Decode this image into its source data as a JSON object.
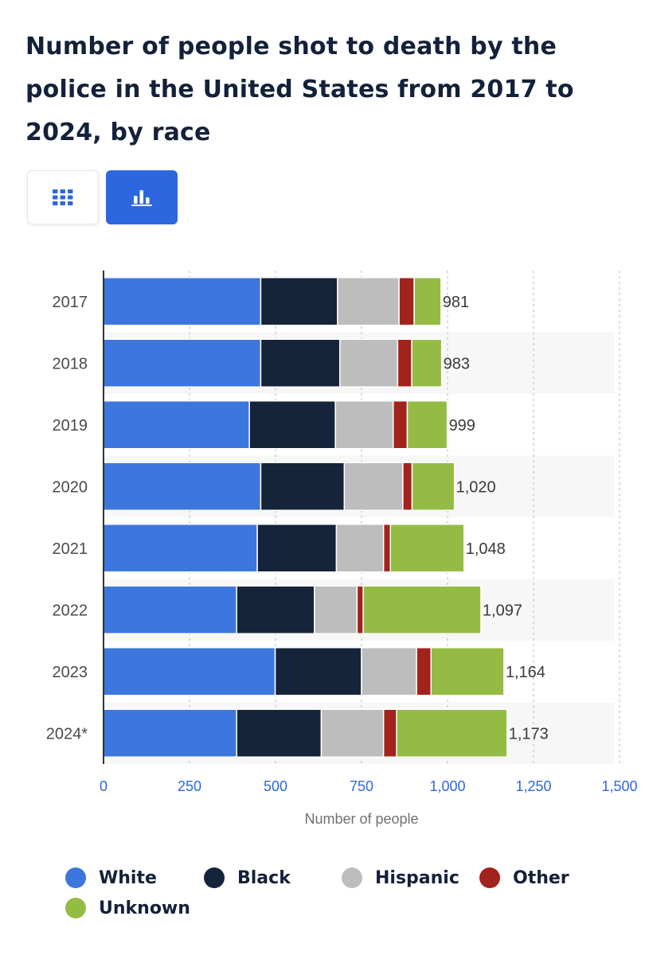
{
  "title": "Number of people shot to death by the police in the United States from 2017 to 2024, by race",
  "view_toggle": {
    "table_icon": "table-grid-icon",
    "chart_icon": "bar-chart-icon",
    "table_color": "#2d67df",
    "active_color": "#2d67df"
  },
  "chart_data": {
    "type": "bar",
    "orientation": "horizontal",
    "stacked": true,
    "title": "Number of people shot to death by the police in the United States from 2017 to 2024, by race",
    "xlabel": "Number of people",
    "ylabel": "",
    "xlim": [
      0,
      1500
    ],
    "xticks": [
      0,
      250,
      500,
      750,
      1000,
      1250,
      1500
    ],
    "xtick_labels": [
      "0",
      "250",
      "500",
      "750",
      "1,000",
      "1,250",
      "1,500"
    ],
    "grid": true,
    "legend_position": "bottom",
    "categories": [
      "2017",
      "2018",
      "2019",
      "2020",
      "2021",
      "2022",
      "2023",
      "2024*"
    ],
    "series": [
      {
        "name": "White",
        "color": "#3d77dd",
        "values": [
          457,
          457,
          424,
          457,
          447,
          387,
          499,
          387
        ]
      },
      {
        "name": "Black",
        "color": "#15243a",
        "values": [
          223,
          230,
          250,
          243,
          230,
          226,
          251,
          246
        ]
      },
      {
        "name": "Hispanic",
        "color": "#bdbdbd",
        "values": [
          179,
          168,
          168,
          170,
          137,
          124,
          160,
          181
        ]
      },
      {
        "name": "Other",
        "color": "#a2221c",
        "values": [
          44,
          41,
          41,
          27,
          20,
          18,
          42,
          38
        ]
      },
      {
        "name": "Unknown",
        "color": "#94bc44",
        "values": [
          78,
          87,
          116,
          123,
          214,
          342,
          212,
          321
        ]
      }
    ],
    "totals": [
      981,
      983,
      999,
      1020,
      1048,
      1097,
      1164,
      1173
    ],
    "total_labels": [
      "981",
      "983",
      "999",
      "1,020",
      "1,048",
      "1,097",
      "1,164",
      "1,173"
    ]
  }
}
